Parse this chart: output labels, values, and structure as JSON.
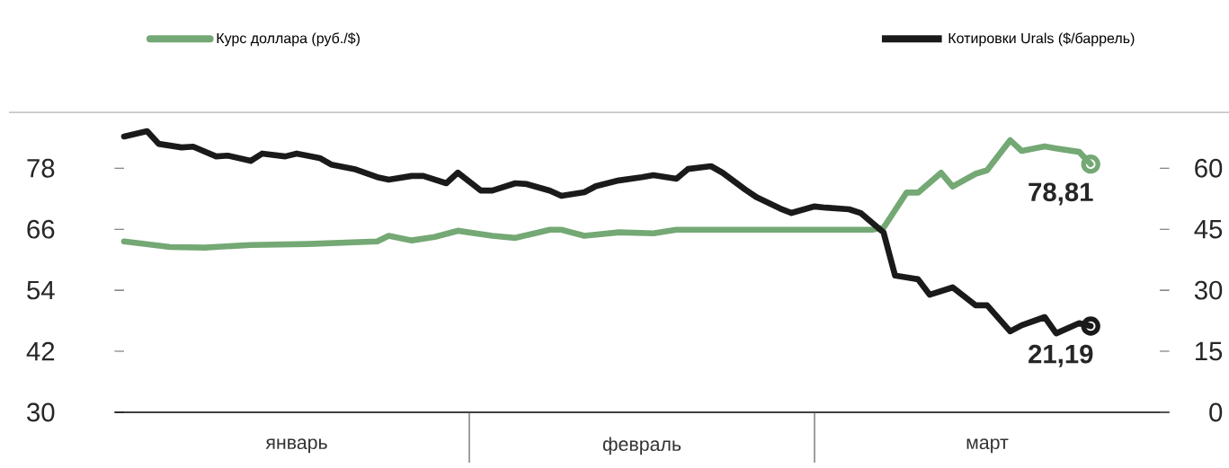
{
  "chart_data": {
    "type": "line",
    "categories": [
      null,
      null,
      null,
      null,
      null,
      null,
      null,
      null,
      null,
      null,
      null,
      null,
      null,
      null,
      null,
      "январь",
      null,
      null,
      null,
      null,
      null,
      null,
      null,
      null,
      null,
      null,
      null,
      null,
      null,
      null,
      null,
      null,
      null,
      null,
      null,
      null,
      null,
      null,
      null,
      null,
      null,
      null,
      null,
      null,
      null,
      "февраль",
      null,
      null,
      null,
      null,
      null,
      null,
      null,
      null,
      null,
      null,
      null,
      null,
      null,
      null,
      null,
      null,
      null,
      null,
      null,
      null,
      null,
      null,
      null,
      null,
      null,
      null,
      null,
      null,
      null,
      "март",
      null,
      null,
      null,
      null,
      null,
      null,
      null,
      null,
      null,
      null,
      null,
      null,
      null,
      null,
      null
    ],
    "ylim": [
      30,
      89
    ],
    "yticks": [
      30,
      42,
      54,
      66,
      78
    ],
    "y2lim": [
      0,
      73.75
    ],
    "y2ticks": [
      0,
      15,
      30,
      45,
      60
    ],
    "legend": "top",
    "series": [
      {
        "name": "Курс доллара (руб./$)",
        "color": "#74a874",
        "values": [
          63.6,
          null,
          null,
          null,
          62.5,
          null,
          null,
          62.4,
          null,
          null,
          null,
          62.9,
          null,
          null,
          null,
          null,
          63.1,
          null,
          null,
          null,
          null,
          null,
          63.6,
          64.7,
          null,
          63.8,
          null,
          64.5,
          null,
          65.7,
          null,
          null,
          64.7,
          null,
          64.3,
          null,
          null,
          65.9,
          65.9,
          null,
          64.7,
          null,
          null,
          65.4,
          null,
          null,
          65.2,
          null,
          65.9,
          null,
          null,
          null,
          null,
          null,
          null,
          null,
          65.9,
          null,
          null,
          null,
          null,
          null,
          null,
          null,
          null,
          65.9,
          66.3,
          null,
          73.2,
          73.2,
          null,
          77.1,
          74.4,
          null,
          76.9,
          77.6,
          null,
          83.5,
          81.4,
          null,
          82.3,
          81.9,
          null,
          81.2,
          78.81,
          null,
          null,
          null,
          null,
          null,
          null
        ]
      },
      {
        "name": "Котировки Urals ($/баррель)",
        "color": "#1a1a1a",
        "axis": "y2",
        "values": [
          67.8,
          null,
          69.1,
          66.0,
          null,
          65.1,
          65.3,
          null,
          62.9,
          63.1,
          null,
          61.8,
          63.6,
          null,
          62.9,
          63.6,
          null,
          62.5,
          60.9,
          null,
          59.8,
          null,
          57.8,
          57.2,
          null,
          58.1,
          58.1,
          null,
          56.3,
          58.9,
          null,
          54.5,
          54.5,
          null,
          56.3,
          56.1,
          null,
          54.5,
          53.2,
          null,
          54.1,
          55.6,
          null,
          57.0,
          null,
          57.8,
          58.3,
          null,
          57.4,
          59.8,
          null,
          60.5,
          58.9,
          null,
          54.7,
          52.8,
          null,
          50.1,
          49.0,
          null,
          50.6,
          50.3,
          null,
          49.9,
          49.0,
          null,
          44.2,
          33.6,
          null,
          32.7,
          28.9,
          null,
          30.7,
          null,
          26.3,
          26.3,
          null,
          19.9,
          21.4,
          null,
          23.4,
          19.4,
          null,
          21.9,
          21.19,
          null,
          null,
          null,
          null,
          null,
          null
        ]
      },
      {
        "type": "scatter",
        "marker": "circle",
        "color": "#74a874",
        "values": [
          null,
          null,
          null,
          null,
          null,
          null,
          null,
          null,
          null,
          null,
          null,
          null,
          null,
          null,
          null,
          null,
          null,
          null,
          null,
          null,
          null,
          null,
          null,
          null,
          null,
          null,
          null,
          null,
          null,
          null,
          null,
          null,
          null,
          null,
          null,
          null,
          null,
          null,
          null,
          null,
          null,
          null,
          null,
          null,
          null,
          null,
          null,
          null,
          null,
          null,
          null,
          null,
          null,
          null,
          null,
          null,
          null,
          null,
          null,
          null,
          null,
          null,
          null,
          null,
          null,
          null,
          null,
          null,
          null,
          null,
          null,
          null,
          null,
          null,
          null,
          null,
          null,
          null,
          null,
          null,
          null,
          null,
          null,
          null,
          78.81,
          null,
          null,
          null,
          null,
          null,
          null
        ],
        "value_labels": [
          null,
          null,
          null,
          null,
          null,
          null,
          null,
          null,
          null,
          null,
          null,
          null,
          null,
          null,
          null,
          null,
          null,
          null,
          null,
          null,
          null,
          null,
          null,
          null,
          null,
          null,
          null,
          null,
          null,
          null,
          null,
          null,
          null,
          null,
          null,
          null,
          null,
          null,
          null,
          null,
          null,
          null,
          null,
          null,
          null,
          null,
          null,
          null,
          null,
          null,
          null,
          null,
          null,
          null,
          null,
          null,
          null,
          null,
          null,
          null,
          null,
          null,
          null,
          null,
          null,
          null,
          null,
          null,
          null,
          null,
          null,
          null,
          null,
          null,
          null,
          null,
          null,
          null,
          null,
          null,
          null,
          null,
          null,
          null,
          "78,81",
          null,
          null,
          null,
          null,
          null,
          null
        ]
      },
      {
        "type": "scatter",
        "marker": "circle",
        "color": "#1a1a1a",
        "axis": "y2",
        "values": [
          null,
          null,
          null,
          null,
          null,
          null,
          null,
          null,
          null,
          null,
          null,
          null,
          null,
          null,
          null,
          null,
          null,
          null,
          null,
          null,
          null,
          null,
          null,
          null,
          null,
          null,
          null,
          null,
          null,
          null,
          null,
          null,
          null,
          null,
          null,
          null,
          null,
          null,
          null,
          null,
          null,
          null,
          null,
          null,
          null,
          null,
          null,
          null,
          null,
          null,
          null,
          null,
          null,
          null,
          null,
          null,
          null,
          null,
          null,
          null,
          null,
          null,
          null,
          null,
          null,
          null,
          null,
          null,
          null,
          null,
          null,
          null,
          null,
          null,
          null,
          null,
          null,
          null,
          null,
          null,
          null,
          null,
          null,
          null,
          21.19,
          null,
          null,
          null,
          null,
          null,
          null
        ],
        "value_labels": [
          null,
          null,
          null,
          null,
          null,
          null,
          null,
          null,
          null,
          null,
          null,
          null,
          null,
          null,
          null,
          null,
          null,
          null,
          null,
          null,
          null,
          null,
          null,
          null,
          null,
          null,
          null,
          null,
          null,
          null,
          null,
          null,
          null,
          null,
          null,
          null,
          null,
          null,
          null,
          null,
          null,
          null,
          null,
          null,
          null,
          null,
          null,
          null,
          null,
          null,
          null,
          null,
          null,
          null,
          null,
          null,
          null,
          null,
          null,
          null,
          null,
          null,
          null,
          null,
          null,
          null,
          null,
          null,
          null,
          null,
          null,
          null,
          null,
          null,
          null,
          null,
          null,
          null,
          null,
          null,
          null,
          null,
          null,
          null,
          "21,19",
          null,
          null,
          null,
          null,
          null,
          null
        ]
      }
    ]
  }
}
